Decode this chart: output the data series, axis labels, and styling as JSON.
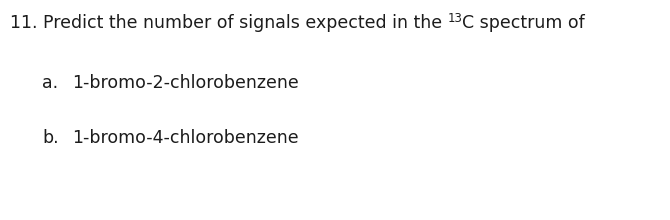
{
  "background_color": "#ffffff",
  "question_number": "11.",
  "question_text_before_super": "Predict the number of signals expected in the ",
  "superscript_text": "13",
  "question_text_C": "C spectrum of",
  "item_a_label": "a.",
  "item_a_text": "1-bromo-2-chlorobenzene",
  "item_b_label": "b.",
  "item_b_text": "1-bromo-4-chlorobenzene",
  "font_size_main": 12.5,
  "font_size_super": 8.5,
  "font_size_items": 12.5,
  "text_color": "#1c1c1c",
  "font_weight": "normal",
  "fig_width": 6.7,
  "fig_height": 2.2,
  "dpi": 100
}
